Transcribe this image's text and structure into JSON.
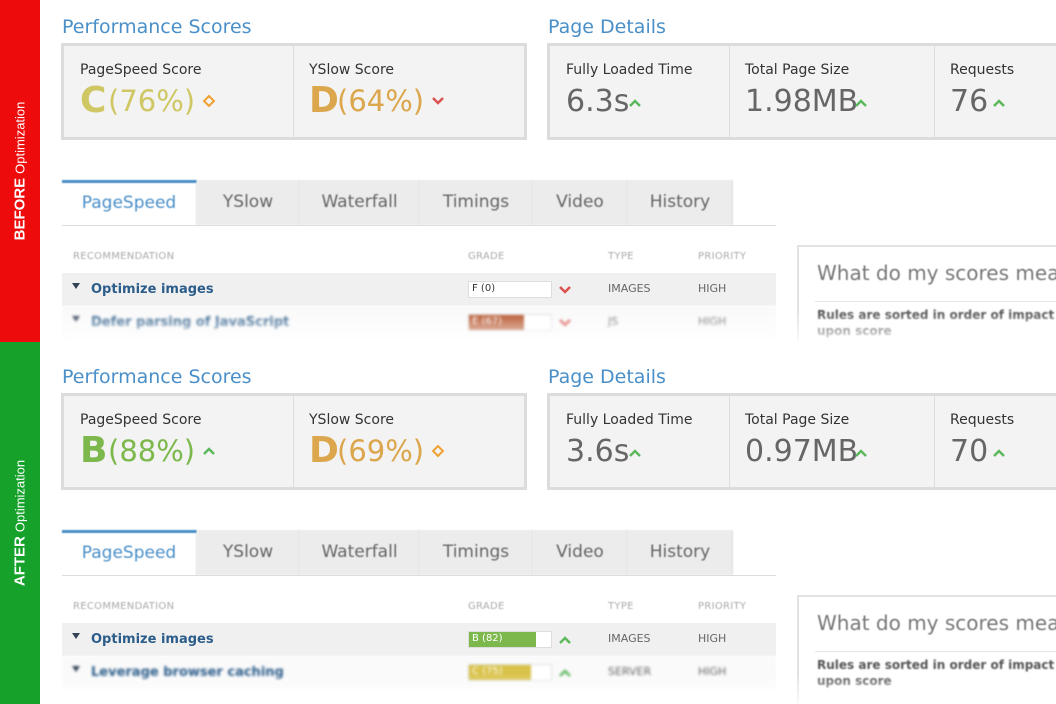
{
  "panels": [
    {
      "label": "BEFORE",
      "label_suffix": "Optimization",
      "color": "#ee0b0b",
      "scores_title": "Performance Scores",
      "scores": [
        {
          "name": "PageSpeed Score",
          "grade": "C",
          "percent": "(76%)",
          "color": "#cfc764",
          "trend": "same"
        },
        {
          "name": "YSlow Score",
          "grade": "D",
          "percent": "(64%)",
          "color": "#dba64c",
          "trend": "down"
        }
      ],
      "details_title": "Page Details",
      "details": [
        {
          "name": "Fully Loaded Time",
          "value": "6.3s"
        },
        {
          "name": "Total Page Size",
          "value": "1.98MB"
        },
        {
          "name": "Requests",
          "value": "76"
        }
      ],
      "tabs": [
        "PageSpeed",
        "YSlow",
        "Waterfall",
        "Timings",
        "Video",
        "History"
      ],
      "columns": [
        "RECOMMENDATION",
        "GRADE",
        "TYPE",
        "PRIORITY"
      ],
      "rows": [
        {
          "name": "Optimize images",
          "grade": "F (0)",
          "grade_score": 0,
          "grade_color": "#c0392b",
          "trend": "down",
          "type": "IMAGES",
          "priority": "HIGH"
        },
        {
          "name": "Defer parsing of JavaScript",
          "grade": "E (67)",
          "grade_score": 67,
          "grade_color": "#b5532a",
          "trend": "down",
          "type": "JS",
          "priority": "HIGH"
        }
      ],
      "side_title": "What do my scores mean",
      "side_text": "Rules are sorted in order of impact upon score"
    },
    {
      "label": "AFTER",
      "label_suffix": "Optimization",
      "color": "#15a12a",
      "scores_title": "Performance Scores",
      "scores": [
        {
          "name": "PageSpeed Score",
          "grade": "B",
          "percent": "(88%)",
          "color": "#7cb84c",
          "trend": "up"
        },
        {
          "name": "YSlow Score",
          "grade": "D",
          "percent": "(69%)",
          "color": "#dba64c",
          "trend": "same"
        }
      ],
      "details_title": "Page Details",
      "details": [
        {
          "name": "Fully Loaded Time",
          "value": "3.6s"
        },
        {
          "name": "Total Page Size",
          "value": "0.97MB"
        },
        {
          "name": "Requests",
          "value": "70"
        }
      ],
      "tabs": [
        "PageSpeed",
        "YSlow",
        "Waterfall",
        "Timings",
        "Video",
        "History"
      ],
      "columns": [
        "RECOMMENDATION",
        "GRADE",
        "TYPE",
        "PRIORITY"
      ],
      "rows": [
        {
          "name": "Optimize images",
          "grade": "B (82)",
          "grade_score": 82,
          "grade_color": "#7cb84c",
          "trend": "up",
          "type": "IMAGES",
          "priority": "HIGH"
        },
        {
          "name": "Leverage browser caching",
          "grade": "C (75)",
          "grade_score": 75,
          "grade_color": "#d9c24a",
          "trend": "up",
          "type": "SERVER",
          "priority": "HIGH"
        }
      ],
      "side_title": "What do my scores mean",
      "side_text": "Rules are sorted in order of impact upon score"
    }
  ]
}
